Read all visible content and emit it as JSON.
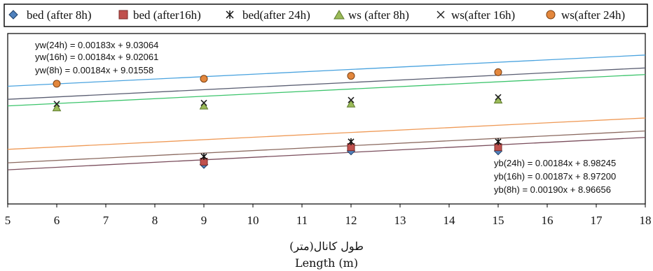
{
  "chart_data": {
    "type": "scatter",
    "xlabel_fa": "طول کانال(متر)",
    "xlabel": "Length (m)",
    "xlim": [
      5,
      18
    ],
    "x_ticks": [
      "5",
      "6",
      "7",
      "8",
      "9",
      "10",
      "11",
      "12",
      "13",
      "14",
      "15",
      "16",
      "17",
      "18"
    ],
    "ylim": [
      8.95,
      9.08
    ],
    "grid": false,
    "legend_position": "top",
    "series": [
      {
        "name": "bed (after 8h)",
        "marker": "diamond",
        "color": "#4f81bd",
        "x": [
          6,
          9,
          12,
          15
        ],
        "y": [
          null,
          8.9801,
          8.9904,
          8.9904
        ]
      },
      {
        "name": "bed (after16h)",
        "marker": "square",
        "color": "#c0504d",
        "x": [
          6,
          9,
          12,
          15
        ],
        "y": [
          null,
          8.9822,
          8.9933,
          8.9933
        ]
      },
      {
        "name": "bed(after 24h)",
        "marker": "asterisk",
        "color": "#111111",
        "x": [
          6,
          9,
          12,
          15
        ],
        "y": [
          null,
          8.9862,
          8.9975,
          8.9975
        ]
      },
      {
        "name": "ws (after 8h)",
        "marker": "triangle",
        "color": "#9bbb59",
        "x": [
          6,
          9,
          12,
          15
        ],
        "y": [
          9.0234,
          9.0248,
          9.0263,
          9.0293
        ]
      },
      {
        "name": "ws(after 16h)",
        "marker": "x",
        "color": "#222222",
        "x": [
          6,
          9,
          12,
          15
        ],
        "y": [
          9.0263,
          9.0271,
          9.0293,
          9.0314
        ]
      },
      {
        "name": "ws(after 24h)",
        "marker": "circle",
        "color": "#e3873c",
        "x": [
          6,
          9,
          12,
          15
        ],
        "y": [
          9.0417,
          9.0455,
          9.0477,
          9.0505
        ]
      }
    ],
    "trendlines": [
      {
        "label": "yw(24h) = 0.00183x + 9.03064",
        "slope": 0.00183,
        "intercept": 9.03064,
        "color": "#4aa3df"
      },
      {
        "label": "yw(16h) = 0.00184x + 9.02061",
        "slope": 0.00184,
        "intercept": 9.02061,
        "color": "#5a5e72"
      },
      {
        "label": "yw(8h) = 0.00184x + 9.01558",
        "slope": 0.00184,
        "intercept": 9.01558,
        "color": "#3bc46b"
      },
      {
        "label": "yb(24h) = 0.00184x + 8.98245",
        "slope": 0.00184,
        "intercept": 8.98245,
        "color": "#ef9a57"
      },
      {
        "label": "yb(16h) = 0.00187x + 8.97200",
        "slope": 0.00187,
        "intercept": 8.972,
        "color": "#8b6a60"
      },
      {
        "label": "yb(8h) = 0.00190x + 8.96656",
        "slope": 0.0019,
        "intercept": 8.96656,
        "color": "#7a4d5c"
      }
    ]
  }
}
